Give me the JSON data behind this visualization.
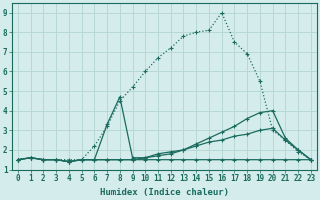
{
  "xlabel": "Humidex (Indice chaleur)",
  "bg_color": "#d4ecec",
  "grid_color": "#b8d8d8",
  "line_color": "#1a6b5e",
  "xlim": [
    -0.5,
    23.5
  ],
  "ylim": [
    1.0,
    9.5
  ],
  "xticks": [
    0,
    1,
    2,
    3,
    4,
    5,
    6,
    7,
    8,
    9,
    10,
    11,
    12,
    13,
    14,
    15,
    16,
    17,
    18,
    19,
    20,
    21,
    22,
    23
  ],
  "yticks": [
    1,
    2,
    3,
    4,
    5,
    6,
    7,
    8,
    9
  ],
  "series": [
    {
      "x": [
        0,
        1,
        2,
        3,
        4,
        5,
        6,
        7,
        8,
        9,
        10,
        11,
        12,
        13,
        14,
        15,
        16,
        17,
        18,
        19,
        20,
        21,
        22,
        23
      ],
      "y": [
        1.5,
        1.6,
        1.5,
        1.5,
        1.5,
        1.5,
        2.2,
        3.2,
        4.5,
        5.2,
        6.0,
        6.7,
        7.2,
        7.8,
        8.0,
        8.1,
        9.0,
        7.5,
        6.9,
        5.5,
        3.0,
        2.5,
        1.9,
        1.5
      ],
      "linestyle": ":"
    },
    {
      "x": [
        0,
        1,
        2,
        3,
        4,
        5,
        6,
        7,
        8,
        9,
        10,
        11,
        12,
        13,
        14,
        15,
        16,
        17,
        18,
        19,
        20,
        21,
        22,
        23
      ],
      "y": [
        1.5,
        1.6,
        1.5,
        1.5,
        1.4,
        1.5,
        1.5,
        3.3,
        4.7,
        1.6,
        1.6,
        1.7,
        1.8,
        2.0,
        2.3,
        2.6,
        2.9,
        3.2,
        3.6,
        3.9,
        4.0,
        2.6,
        2.0,
        1.5
      ],
      "linestyle": "-"
    },
    {
      "x": [
        0,
        1,
        2,
        3,
        4,
        5,
        6,
        7,
        8,
        9,
        10,
        11,
        12,
        13,
        14,
        15,
        16,
        17,
        18,
        19,
        20,
        21,
        22,
        23
      ],
      "y": [
        1.5,
        1.6,
        1.5,
        1.5,
        1.4,
        1.5,
        1.5,
        1.5,
        1.5,
        1.5,
        1.6,
        1.8,
        1.9,
        2.0,
        2.2,
        2.4,
        2.5,
        2.7,
        2.8,
        3.0,
        3.1,
        2.5,
        2.0,
        1.5
      ],
      "linestyle": "-"
    },
    {
      "x": [
        0,
        1,
        2,
        3,
        4,
        5,
        6,
        7,
        8,
        9,
        10,
        11,
        12,
        13,
        14,
        15,
        16,
        17,
        18,
        19,
        20,
        21,
        22,
        23
      ],
      "y": [
        1.5,
        1.6,
        1.5,
        1.5,
        1.4,
        1.5,
        1.5,
        1.5,
        1.5,
        1.5,
        1.5,
        1.5,
        1.5,
        1.5,
        1.5,
        1.5,
        1.5,
        1.5,
        1.5,
        1.5,
        1.5,
        1.5,
        1.5,
        1.5
      ],
      "linestyle": "-"
    }
  ]
}
